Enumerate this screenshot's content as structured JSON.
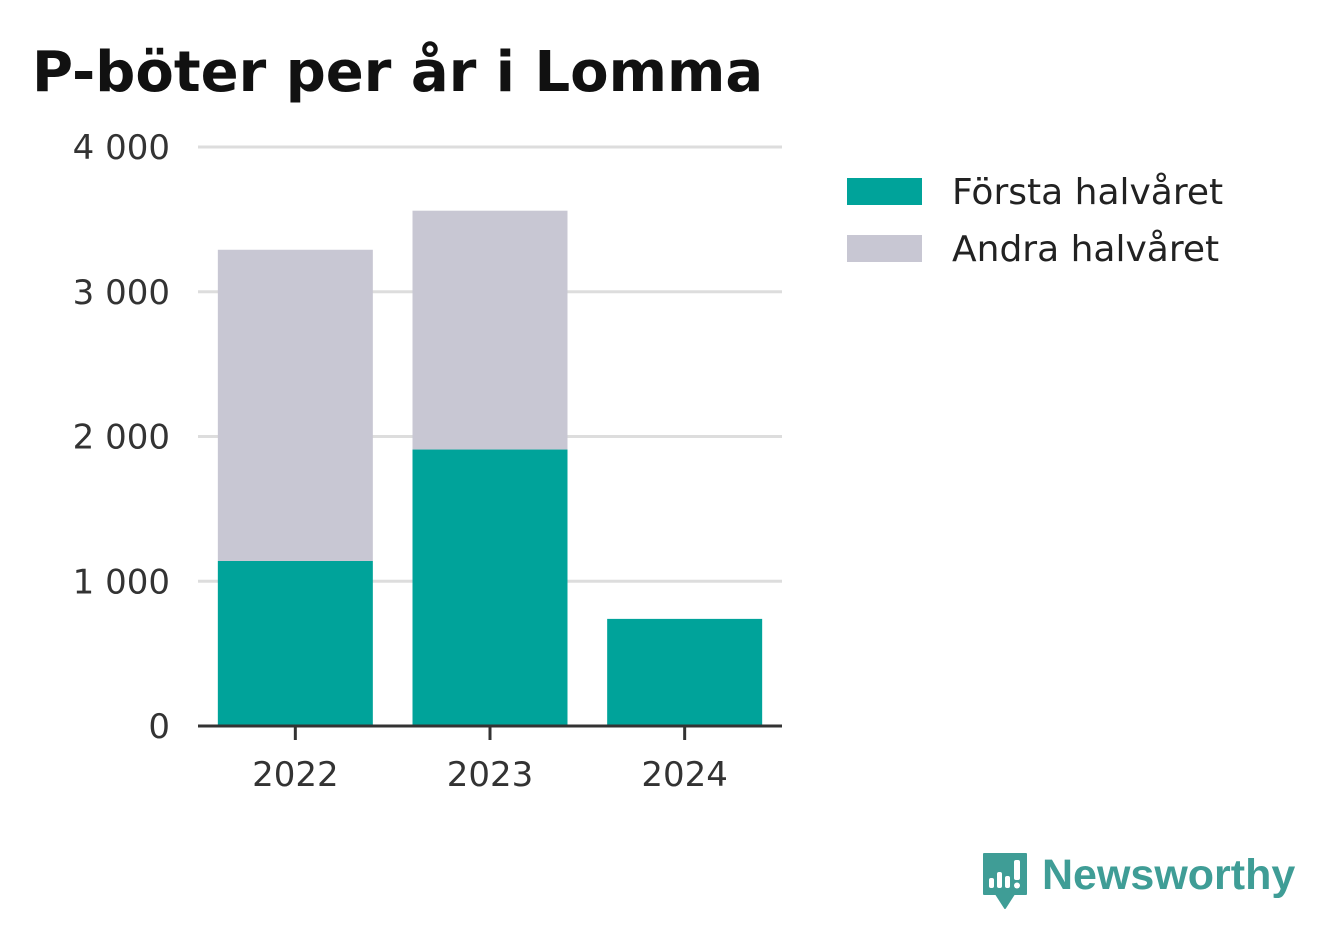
{
  "chart_data": {
    "type": "bar",
    "stacked": true,
    "title": "P-böter per år i Lomma",
    "categories": [
      "2022",
      "2023",
      "2024"
    ],
    "series": [
      {
        "name": "Första halvåret",
        "color": "#00a39a",
        "values": [
          1140,
          1910,
          740
        ]
      },
      {
        "name": "Andra halvåret",
        "color": "#c8c7d3",
        "values": [
          2150,
          1650,
          0
        ]
      }
    ],
    "ylim": [
      0,
      4000
    ],
    "yticks": [
      0,
      1000,
      2000,
      3000,
      4000
    ],
    "ytick_labels": [
      "0",
      "1 000",
      "2 000",
      "3 000",
      "4 000"
    ],
    "xlabel": "",
    "ylabel": "",
    "grid": true,
    "legend_position": "top-right"
  },
  "branding": {
    "name": "Newsworthy",
    "icon": "newsworthy-logo-icon",
    "color": "#3f9d96"
  }
}
